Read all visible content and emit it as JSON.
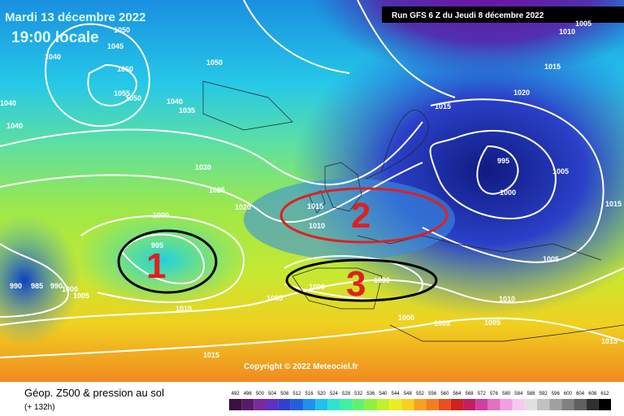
{
  "header": {
    "date": "Mardi 13 décembre 2022",
    "time": "19:00 locale",
    "run": "Run GFS 6 Z du Jeudi 8 décembre 2022"
  },
  "map": {
    "isobar_labels": [
      "1050",
      "1045",
      "1040",
      "1060",
      "1055",
      "1050",
      "1040",
      "1035",
      "1040",
      "1040",
      "1050",
      "1030",
      "1025",
      "1020",
      "1015",
      "1020",
      "1015",
      "1010",
      "1005",
      "995",
      "1000",
      "1005",
      "1015",
      "1010",
      "1000",
      "995",
      "990",
      "985",
      "990",
      "1000",
      "1005",
      "1010",
      "1005",
      "1000",
      "1000",
      "1000",
      "1005",
      "1010",
      "1005",
      "1005",
      "1015",
      "1015",
      "1015"
    ],
    "annotations": [
      "1",
      "2",
      "3"
    ],
    "copyright": "Copyright © 2022 Meteociel.fr"
  },
  "footer": {
    "title": "Géop. Z500 & pression au sol",
    "lead": "(+ 132h)",
    "scale": [
      492,
      496,
      500,
      504,
      508,
      512,
      516,
      520,
      524,
      528,
      532,
      536,
      540,
      544,
      548,
      552,
      556,
      560,
      564,
      568,
      572,
      576,
      580,
      584,
      588,
      592,
      596,
      600,
      604,
      608,
      612
    ]
  }
}
